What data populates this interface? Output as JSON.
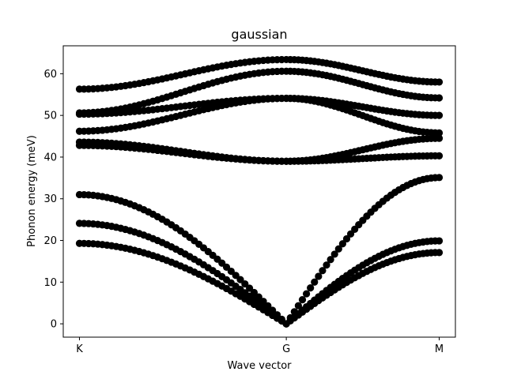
{
  "chart_data": {
    "type": "scatter",
    "title": "gaussian",
    "xlabel": "Wave vector",
    "ylabel": "Phonon energy (meV)",
    "xlim": [
      -0.09,
      2.09
    ],
    "ylim": [
      -3.2,
      66.7
    ],
    "x_ticks": [
      {
        "value": 0,
        "label": "K"
      },
      {
        "value": 1.15,
        "label": "G"
      },
      {
        "value": 2.0,
        "label": "M"
      }
    ],
    "y_ticks": [
      0,
      10,
      20,
      30,
      40,
      50,
      60
    ],
    "grid": false,
    "marker_color": "#000000",
    "kg_points": 45,
    "gm_points": 38,
    "bands": [
      {
        "K": 19.3,
        "G": 0.0,
        "M": 17.1
      },
      {
        "K": 24.1,
        "G": 0.0,
        "M": 19.9
      },
      {
        "K": 31.0,
        "G": 0.0,
        "M": 35.1
      },
      {
        "K": 42.8,
        "G": 39.0,
        "M": 40.3
      },
      {
        "K": 43.6,
        "G": 39.0,
        "M": 44.5
      },
      {
        "K": 46.2,
        "G": 54.1,
        "M": 45.8
      },
      {
        "K": 50.3,
        "G": 54.1,
        "M": 50.0
      },
      {
        "K": 50.6,
        "G": 60.6,
        "M": 54.2
      },
      {
        "K": 56.3,
        "G": 63.4,
        "M": 58.0
      }
    ]
  }
}
